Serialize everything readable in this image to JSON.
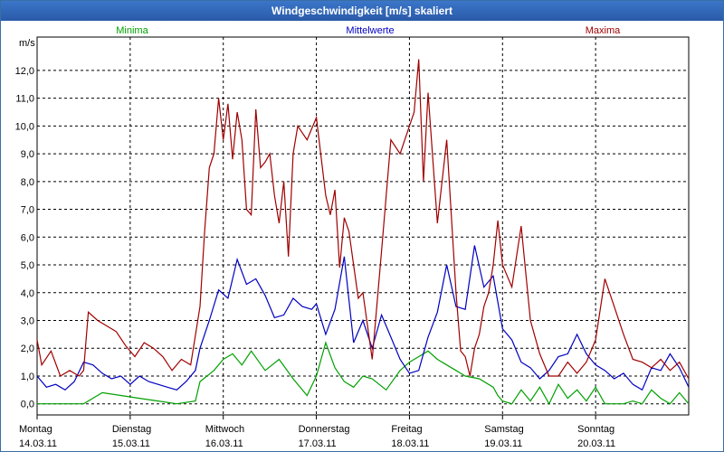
{
  "chart_data": {
    "type": "line",
    "title": "Windgeschwindigkeit [m/s] skaliert",
    "ylabel": "m/s",
    "ylim": [
      -0.4,
      13.2
    ],
    "yticks": [
      0,
      1,
      2,
      3,
      4,
      5,
      6,
      7,
      8,
      9,
      10,
      11,
      12
    ],
    "ytick_labels": [
      "0,0",
      "1,0",
      "2,0",
      "3,0",
      "4,0",
      "5,0",
      "6,0",
      "7,0",
      "8,0",
      "9,0",
      "10,0",
      "11,0",
      "12,0"
    ],
    "xlim": [
      0,
      7
    ],
    "days": [
      {
        "day": "Montag",
        "date": "14.03.11"
      },
      {
        "day": "Dienstag",
        "date": "15.03.11"
      },
      {
        "day": "Mittwoch",
        "date": "16.03.11"
      },
      {
        "day": "Donnerstag",
        "date": "17.03.11"
      },
      {
        "day": "Freitag",
        "date": "18.03.11"
      },
      {
        "day": "Samstag",
        "date": "19.03.11"
      },
      {
        "day": "Sonntag",
        "date": "20.03.11"
      }
    ],
    "grid": true,
    "series": [
      {
        "name": "Minima",
        "color": "#00a000",
        "legend_pos": "left",
        "x": [
          0,
          0.5,
          0.7,
          0.9,
          1.1,
          1.3,
          1.5,
          1.7,
          1.75,
          1.9,
          2.0,
          2.1,
          2.2,
          2.3,
          2.45,
          2.6,
          2.75,
          2.9,
          3.0,
          3.1,
          3.2,
          3.3,
          3.4,
          3.5,
          3.6,
          3.75,
          3.9,
          4.0,
          4.1,
          4.2,
          4.3,
          4.4,
          4.5,
          4.6,
          4.75,
          4.9,
          4.95,
          5.0,
          5.1,
          5.2,
          5.3,
          5.4,
          5.5,
          5.6,
          5.7,
          5.8,
          5.9,
          6.0,
          6.1,
          6.3,
          6.4,
          6.5,
          6.6,
          6.7,
          6.8,
          6.9,
          7.0
        ],
        "values": [
          0,
          0,
          0.4,
          0.3,
          0.2,
          0.1,
          0,
          0.1,
          0.8,
          1.2,
          1.6,
          1.8,
          1.4,
          1.9,
          1.2,
          1.6,
          0.9,
          0.3,
          1.0,
          2.2,
          1.3,
          0.8,
          0.6,
          1.0,
          0.9,
          0.5,
          1.2,
          1.5,
          1.7,
          1.9,
          1.6,
          1.4,
          1.2,
          1.0,
          0.9,
          0.6,
          0.3,
          0.1,
          0,
          0.5,
          0.1,
          0.6,
          0,
          0.7,
          0.2,
          0.5,
          0.1,
          0.6,
          0,
          0,
          0.1,
          0,
          0.5,
          0.2,
          0,
          0.4,
          0
        ]
      },
      {
        "name": "Mittelwerte",
        "color": "#0000c0",
        "legend_pos": "center",
        "x": [
          0,
          0.1,
          0.2,
          0.3,
          0.4,
          0.5,
          0.6,
          0.7,
          0.8,
          0.9,
          1.0,
          1.1,
          1.2,
          1.3,
          1.4,
          1.5,
          1.6,
          1.7,
          1.75,
          1.85,
          1.95,
          2.05,
          2.15,
          2.25,
          2.35,
          2.45,
          2.55,
          2.65,
          2.75,
          2.85,
          2.95,
          3.0,
          3.1,
          3.2,
          3.3,
          3.4,
          3.5,
          3.6,
          3.7,
          3.8,
          3.9,
          4.0,
          4.1,
          4.2,
          4.3,
          4.4,
          4.5,
          4.6,
          4.7,
          4.8,
          4.9,
          5.0,
          5.1,
          5.2,
          5.3,
          5.4,
          5.5,
          5.6,
          5.7,
          5.8,
          5.9,
          6.0,
          6.1,
          6.2,
          6.3,
          6.4,
          6.5,
          6.6,
          6.7,
          6.8,
          6.9,
          7.0
        ],
        "values": [
          1.0,
          0.6,
          0.7,
          0.5,
          0.8,
          1.5,
          1.4,
          1.1,
          0.9,
          1.0,
          0.7,
          1.0,
          0.8,
          0.7,
          0.6,
          0.5,
          0.8,
          1.2,
          2.0,
          3.0,
          4.1,
          3.8,
          5.2,
          4.3,
          4.5,
          3.9,
          3.1,
          3.2,
          3.8,
          3.5,
          3.4,
          3.6,
          2.5,
          3.4,
          5.3,
          2.2,
          3.0,
          2.0,
          3.2,
          2.4,
          1.6,
          1.1,
          1.2,
          2.4,
          3.3,
          5.0,
          3.5,
          3.4,
          5.7,
          4.2,
          4.6,
          2.7,
          2.3,
          1.5,
          1.3,
          0.9,
          1.2,
          1.7,
          1.8,
          2.5,
          1.8,
          1.4,
          1.2,
          0.9,
          1.1,
          0.7,
          0.5,
          1.3,
          1.2,
          1.8,
          1.3,
          0.6
        ]
      },
      {
        "name": "Maxima",
        "color": "#a00000",
        "legend_pos": "right",
        "x": [
          0,
          0.05,
          0.15,
          0.25,
          0.35,
          0.45,
          0.5,
          0.55,
          0.65,
          0.75,
          0.85,
          0.95,
          1.05,
          1.15,
          1.25,
          1.35,
          1.45,
          1.55,
          1.65,
          1.75,
          1.8,
          1.85,
          1.9,
          1.95,
          2.0,
          2.05,
          2.1,
          2.15,
          2.2,
          2.25,
          2.3,
          2.35,
          2.4,
          2.45,
          2.5,
          2.55,
          2.6,
          2.65,
          2.7,
          2.75,
          2.8,
          2.9,
          3.0,
          3.1,
          3.15,
          3.2,
          3.25,
          3.3,
          3.35,
          3.4,
          3.45,
          3.5,
          3.6,
          3.7,
          3.8,
          3.9,
          4.0,
          4.05,
          4.1,
          4.15,
          4.2,
          4.3,
          4.4,
          4.5,
          4.55,
          4.6,
          4.65,
          4.7,
          4.75,
          4.8,
          4.85,
          4.9,
          4.95,
          5.0,
          5.1,
          5.2,
          5.3,
          5.4,
          5.5,
          5.6,
          5.7,
          5.8,
          5.9,
          6.0,
          6.1,
          6.2,
          6.3,
          6.4,
          6.5,
          6.6,
          6.7,
          6.8,
          6.9,
          7.0
        ],
        "values": [
          2.3,
          1.4,
          1.9,
          1.0,
          1.2,
          1.0,
          1.2,
          3.3,
          3.0,
          2.8,
          2.6,
          2.1,
          1.7,
          2.2,
          2.0,
          1.7,
          1.2,
          1.6,
          1.4,
          3.5,
          6.2,
          8.5,
          9.0,
          11.0,
          9.5,
          10.8,
          8.8,
          10.5,
          9.5,
          7.0,
          6.8,
          10.6,
          8.5,
          8.7,
          9.0,
          7.5,
          6.5,
          8.0,
          5.3,
          9.0,
          10.0,
          9.5,
          10.3,
          7.5,
          6.8,
          7.7,
          4.9,
          6.7,
          6.2,
          5.0,
          3.8,
          4.0,
          1.6,
          5.5,
          9.5,
          9.0,
          10.0,
          10.5,
          12.4,
          8.0,
          11.2,
          6.5,
          9.5,
          4.0,
          1.9,
          1.7,
          1.0,
          2.0,
          2.5,
          3.5,
          4.0,
          5.0,
          6.6,
          5.0,
          4.2,
          6.4,
          3.0,
          1.8,
          1.0,
          1.0,
          1.5,
          1.1,
          1.5,
          2.3,
          4.5,
          3.5,
          2.5,
          1.6,
          1.5,
          1.3,
          1.6,
          1.2,
          1.5,
          0.9
        ]
      }
    ]
  }
}
